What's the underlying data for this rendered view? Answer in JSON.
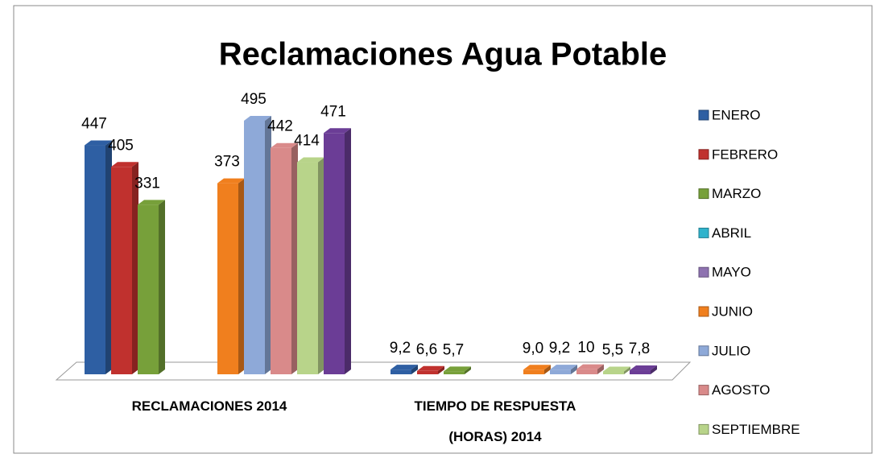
{
  "chart_data": {
    "type": "bar3d",
    "title": "Reclamaciones Agua Potable",
    "categories": [
      "RECLAMACIONES 2014",
      "TIEMPO DE RESPUESTA (HORAS) 2014"
    ],
    "series": [
      {
        "name": "ENERO",
        "color": "#2e5fa3",
        "values": [
          447,
          9.2
        ],
        "value_labels": [
          "447",
          "9,2"
        ]
      },
      {
        "name": "FEBRERO",
        "color": "#c0312e",
        "values": [
          405,
          6.6
        ],
        "value_labels": [
          "405",
          "6,6"
        ]
      },
      {
        "name": "MARZO",
        "color": "#77a03a",
        "values": [
          331,
          5.7
        ],
        "value_labels": [
          "331",
          "5,7"
        ]
      },
      {
        "name": "ABRIL",
        "color": "#2fb3cc",
        "values": [
          null,
          null
        ],
        "value_labels": [
          null,
          null
        ]
      },
      {
        "name": "MAYO",
        "color": "#8e72b0",
        "values": [
          null,
          null
        ],
        "value_labels": [
          null,
          null
        ]
      },
      {
        "name": "JUNIO",
        "color": "#f07f1e",
        "values": [
          373,
          9.0
        ],
        "value_labels": [
          "373",
          "9,0"
        ]
      },
      {
        "name": "JULIO",
        "color": "#8ea9d8",
        "values": [
          495,
          9.2
        ],
        "value_labels": [
          "495",
          "9,2"
        ]
      },
      {
        "name": "AGOSTO",
        "color": "#d98a8a",
        "values": [
          442,
          10
        ],
        "value_labels": [
          "442",
          "10"
        ]
      },
      {
        "name": "SEPTIEMBRE",
        "color": "#b8d48a",
        "values": [
          414,
          5.5
        ],
        "value_labels": [
          "414",
          "5,5"
        ]
      },
      {
        "color": "#6b3d96",
        "values": [
          471,
          7.8
        ],
        "value_labels": [
          "471",
          "7,8"
        ]
      }
    ]
  }
}
